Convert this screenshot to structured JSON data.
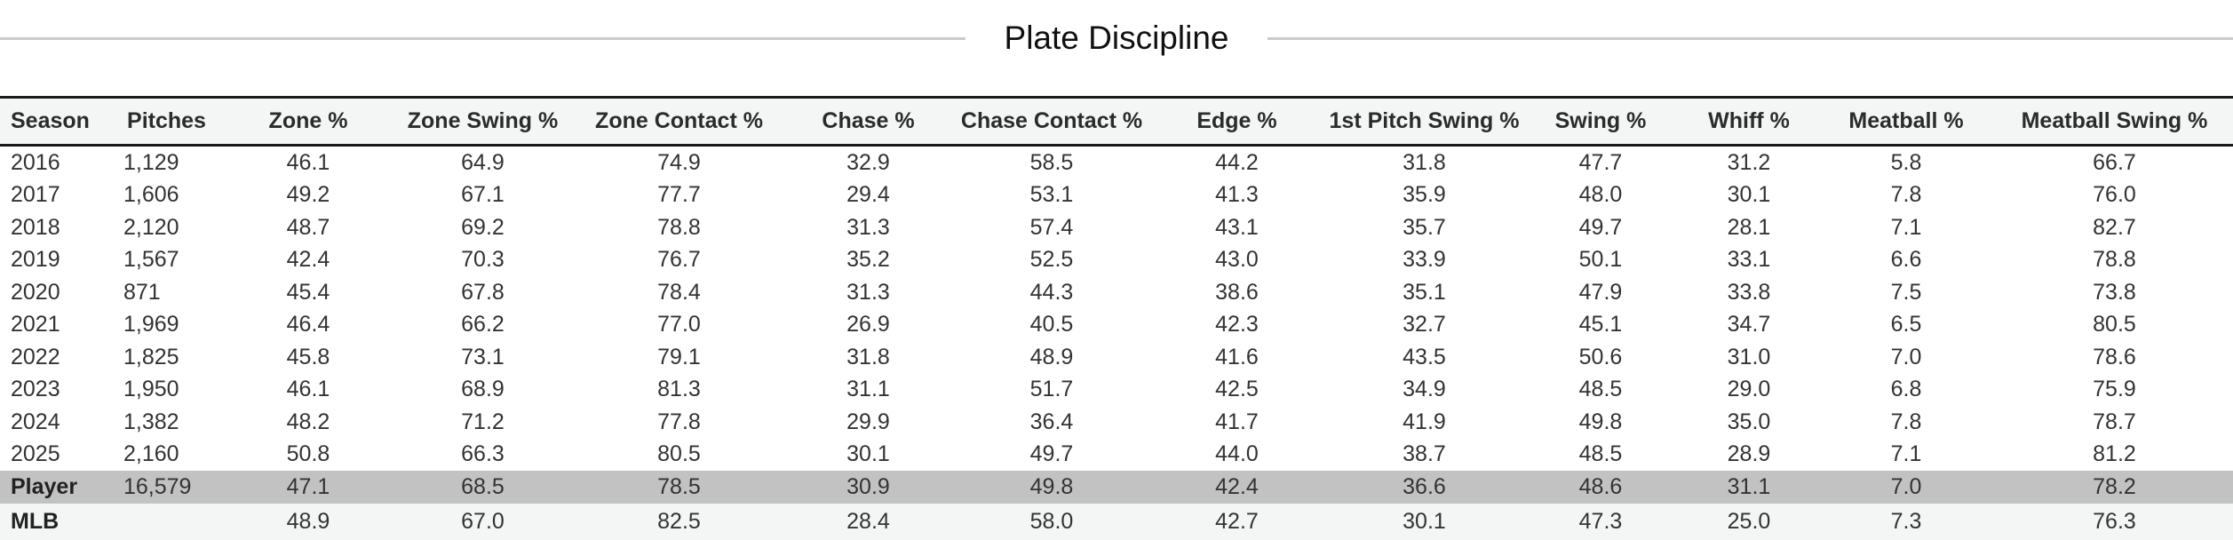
{
  "title": "Plate Discipline",
  "colors": {
    "header_bg": "#f4f6f6",
    "player_row_bg": "#c2c2c2",
    "mlb_row_bg": "#f4f5f5",
    "table_border": "#1a1a1a",
    "title_divider": "#c9cacb",
    "body_text": "#333333"
  },
  "table": {
    "columns": [
      {
        "key": "season",
        "label": "Season"
      },
      {
        "key": "pitches",
        "label": "Pitches"
      },
      {
        "key": "zone_pct",
        "label": "Zone %"
      },
      {
        "key": "zone_swing_pct",
        "label": "Zone Swing %"
      },
      {
        "key": "zone_contact_pct",
        "label": "Zone Contact %"
      },
      {
        "key": "chase_pct",
        "label": "Chase %"
      },
      {
        "key": "chase_contact_pct",
        "label": "Chase Contact %"
      },
      {
        "key": "edge_pct",
        "label": "Edge %"
      },
      {
        "key": "first_pitch_swing_pct",
        "label": "1st Pitch Swing %"
      },
      {
        "key": "swing_pct",
        "label": "Swing %"
      },
      {
        "key": "whiff_pct",
        "label": "Whiff %"
      },
      {
        "key": "meatball_pct",
        "label": "Meatball %"
      },
      {
        "key": "meatball_swing_pct",
        "label": "Meatball Swing %"
      }
    ],
    "rows": [
      {
        "id": "2016",
        "style": "default",
        "cells": [
          "2016",
          "1,129",
          "46.1",
          "64.9",
          "74.9",
          "32.9",
          "58.5",
          "44.2",
          "31.8",
          "47.7",
          "31.2",
          "5.8",
          "66.7"
        ]
      },
      {
        "id": "2017",
        "style": "default",
        "cells": [
          "2017",
          "1,606",
          "49.2",
          "67.1",
          "77.7",
          "29.4",
          "53.1",
          "41.3",
          "35.9",
          "48.0",
          "30.1",
          "7.8",
          "76.0"
        ]
      },
      {
        "id": "2018",
        "style": "default",
        "cells": [
          "2018",
          "2,120",
          "48.7",
          "69.2",
          "78.8",
          "31.3",
          "57.4",
          "43.1",
          "35.7",
          "49.7",
          "28.1",
          "7.1",
          "82.7"
        ]
      },
      {
        "id": "2019",
        "style": "default",
        "cells": [
          "2019",
          "1,567",
          "42.4",
          "70.3",
          "76.7",
          "35.2",
          "52.5",
          "43.0",
          "33.9",
          "50.1",
          "33.1",
          "6.6",
          "78.8"
        ]
      },
      {
        "id": "2020",
        "style": "default",
        "cells": [
          "2020",
          "871",
          "45.4",
          "67.8",
          "78.4",
          "31.3",
          "44.3",
          "38.6",
          "35.1",
          "47.9",
          "33.8",
          "7.5",
          "73.8"
        ]
      },
      {
        "id": "2021",
        "style": "default",
        "cells": [
          "2021",
          "1,969",
          "46.4",
          "66.2",
          "77.0",
          "26.9",
          "40.5",
          "42.3",
          "32.7",
          "45.1",
          "34.7",
          "6.5",
          "80.5"
        ]
      },
      {
        "id": "2022",
        "style": "default",
        "cells": [
          "2022",
          "1,825",
          "45.8",
          "73.1",
          "79.1",
          "31.8",
          "48.9",
          "41.6",
          "43.5",
          "50.6",
          "31.0",
          "7.0",
          "78.6"
        ]
      },
      {
        "id": "2023",
        "style": "default",
        "cells": [
          "2023",
          "1,950",
          "46.1",
          "68.9",
          "81.3",
          "31.1",
          "51.7",
          "42.5",
          "34.9",
          "48.5",
          "29.0",
          "6.8",
          "75.9"
        ]
      },
      {
        "id": "2024",
        "style": "default",
        "cells": [
          "2024",
          "1,382",
          "48.2",
          "71.2",
          "77.8",
          "29.9",
          "36.4",
          "41.7",
          "41.9",
          "49.8",
          "35.0",
          "7.8",
          "78.7"
        ]
      },
      {
        "id": "2025",
        "style": "default",
        "cells": [
          "2025",
          "2,160",
          "50.8",
          "66.3",
          "80.5",
          "30.1",
          "49.7",
          "44.0",
          "38.7",
          "48.5",
          "28.9",
          "7.1",
          "81.2"
        ]
      },
      {
        "id": "player",
        "style": "player",
        "cells": [
          "Player",
          "16,579",
          "47.1",
          "68.5",
          "78.5",
          "30.9",
          "49.8",
          "42.4",
          "36.6",
          "48.6",
          "31.1",
          "7.0",
          "78.2"
        ]
      },
      {
        "id": "mlb",
        "style": "mlb",
        "cells": [
          "MLB",
          "",
          "48.9",
          "67.0",
          "82.5",
          "28.4",
          "58.0",
          "42.7",
          "30.1",
          "47.3",
          "25.0",
          "7.3",
          "76.3"
        ]
      }
    ]
  }
}
